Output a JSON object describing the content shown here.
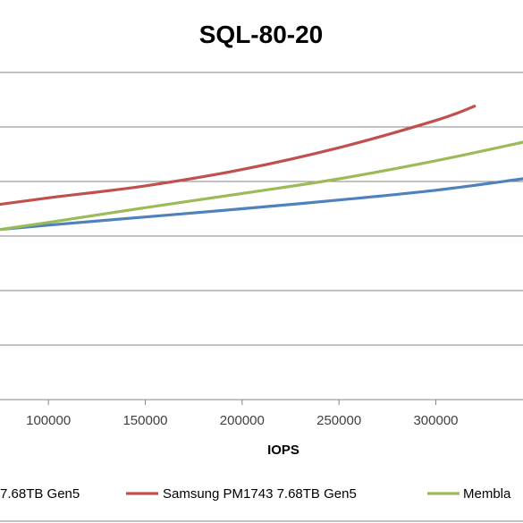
{
  "chart_data": {
    "type": "line",
    "title": "SQL-80-20",
    "xlabel": "IOPS",
    "ylabel": "",
    "xlim": [
      75000,
      345000
    ],
    "ylim": [
      0,
      6
    ],
    "x_ticks": [
      100000,
      150000,
      200000,
      250000,
      300000
    ],
    "x_tick_labels": [
      "100000",
      "150000",
      "200000",
      "250000",
      "300000"
    ],
    "y_gridlines": [
      1,
      2,
      3,
      4,
      5
    ],
    "grid": true,
    "legend_position": "bottom",
    "series": [
      {
        "name": "Samsung PM1743 7.68TB Gen5",
        "legend_label": "7.68TB Gen5",
        "color": "#4F81BD",
        "x": [
          75000,
          100000,
          150000,
          200000,
          250000,
          300000,
          345000
        ],
        "y": [
          3.12,
          3.2,
          3.35,
          3.5,
          3.66,
          3.84,
          4.05
        ]
      },
      {
        "name": "Samsung PM1743 7.68TB Gen5",
        "legend_label": "Samsung PM1743 7.68TB Gen5",
        "color": "#C0504D",
        "x": [
          75000,
          100000,
          150000,
          200000,
          250000,
          300000,
          320000
        ],
        "y": [
          3.58,
          3.7,
          3.92,
          4.22,
          4.62,
          5.12,
          5.38
        ]
      },
      {
        "name": "Membla",
        "legend_label": "Membla",
        "color": "#9BBB59",
        "x": [
          75000,
          100000,
          150000,
          200000,
          250000,
          300000,
          345000
        ],
        "y": [
          3.12,
          3.25,
          3.52,
          3.78,
          4.05,
          4.38,
          4.72
        ]
      }
    ]
  }
}
